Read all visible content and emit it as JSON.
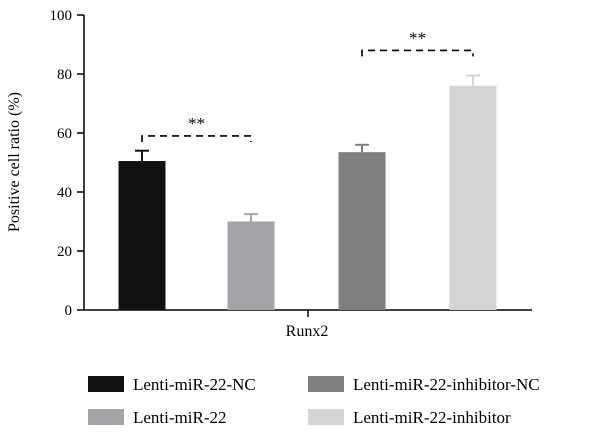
{
  "chart_data": {
    "type": "bar",
    "xlabel": "Runx2",
    "ylabel": "Positive cell ratio (%)",
    "ylim": [
      0,
      100
    ],
    "yticks": [
      0,
      20,
      40,
      60,
      80,
      100
    ],
    "grid": false,
    "legend_placement": "bottom",
    "series": [
      {
        "name": "Lenti-miR-22-NC",
        "value": 50.5,
        "error": 3.5,
        "color": "#111111"
      },
      {
        "name": "Lenti-miR-22",
        "value": 30,
        "error": 2.5,
        "color": "#a4a4a8"
      },
      {
        "name": "Lenti-miR-22-inhibitor-NC",
        "value": 53.5,
        "error": 2.5,
        "color": "#7f7f7f"
      },
      {
        "name": "Lenti-miR-22-inhibitor",
        "value": 76,
        "error": 3.5,
        "color": "#d4d4d4"
      }
    ],
    "significance": [
      {
        "from": 0,
        "to": 1,
        "level": 59,
        "label": "**"
      },
      {
        "from": 2,
        "to": 3,
        "level": 88,
        "label": "**"
      }
    ]
  }
}
